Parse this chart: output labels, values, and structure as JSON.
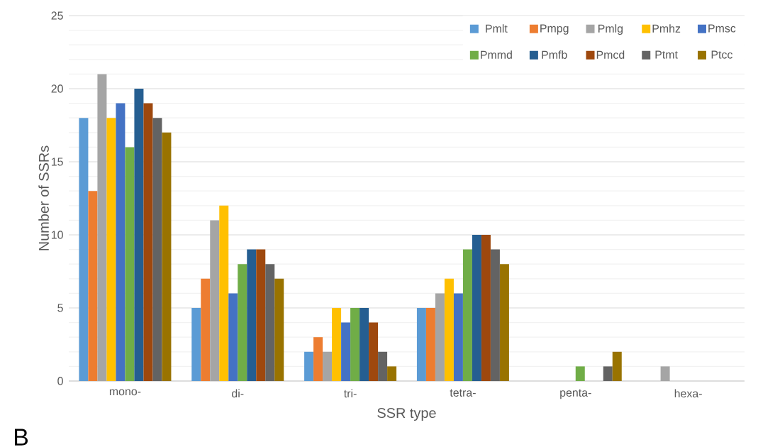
{
  "chart_data": {
    "type": "bar",
    "xlabel": "SSR type",
    "ylabel": "Number of SSRs",
    "categories": [
      "mono-",
      "di-",
      "tri-",
      "tetra-",
      "penta-",
      "hexa-"
    ],
    "series": [
      {
        "name": "Pmlt",
        "color": "#5b9bd5",
        "values": [
          18,
          5,
          2,
          5,
          0,
          0
        ]
      },
      {
        "name": "Pmpg",
        "color": "#ed7d31",
        "values": [
          13,
          7,
          3,
          5,
          0,
          0
        ]
      },
      {
        "name": "Pmlg",
        "color": "#a5a5a5",
        "values": [
          21,
          11,
          2,
          6,
          0,
          1
        ]
      },
      {
        "name": "Pmhz",
        "color": "#ffc000",
        "values": [
          18,
          12,
          5,
          7,
          0,
          0
        ]
      },
      {
        "name": "Pmsc",
        "color": "#4472c4",
        "values": [
          19,
          6,
          4,
          6,
          0,
          0
        ]
      },
      {
        "name": "Pmmd",
        "color": "#70ad47",
        "values": [
          16,
          8,
          5,
          9,
          1,
          0
        ]
      },
      {
        "name": "Pmfb",
        "color": "#255e91",
        "values": [
          20,
          9,
          5,
          10,
          0,
          0
        ]
      },
      {
        "name": "Pmcd",
        "color": "#9e480e",
        "values": [
          19,
          9,
          4,
          10,
          0,
          0
        ]
      },
      {
        "name": "Ptmt",
        "color": "#636363",
        "values": [
          18,
          8,
          2,
          9,
          1,
          0
        ]
      },
      {
        "name": "Ptcc",
        "color": "#997300",
        "values": [
          17,
          7,
          1,
          8,
          2,
          0
        ]
      }
    ],
    "ylim": [
      0,
      25
    ],
    "yticks": [
      0,
      5,
      10,
      15,
      20,
      25
    ],
    "grid": "y",
    "legend": "top right",
    "annotations": [
      "B"
    ]
  }
}
